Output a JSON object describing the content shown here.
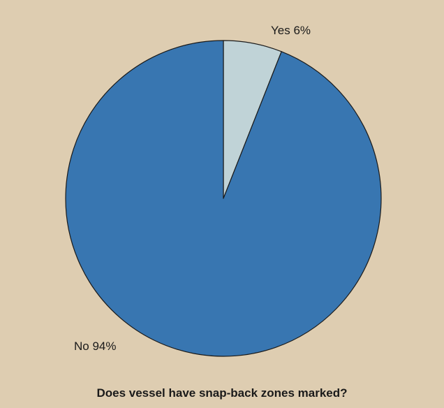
{
  "chart_data": {
    "type": "pie",
    "title": "Does vessel have snap-back zones marked?",
    "start_angle_deg": 0,
    "direction": "clockwise",
    "slices": [
      {
        "label": "Yes 6%",
        "value": 6,
        "color": "#c0d3d7"
      },
      {
        "label": "No 94%",
        "value": 94,
        "color": "#3876b1"
      }
    ],
    "legend": "none",
    "grid": false
  },
  "colors": {
    "background": "#decdb1",
    "slice_stroke": "#1a1a1a"
  }
}
